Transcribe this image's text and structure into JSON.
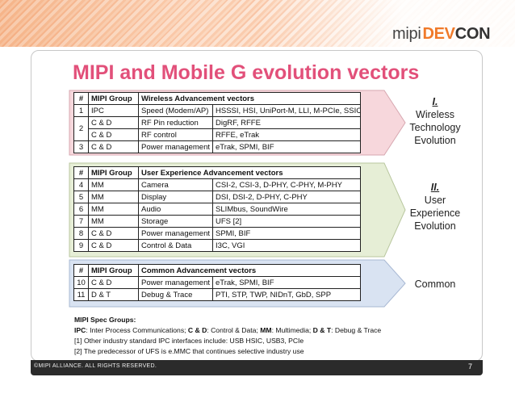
{
  "header": {
    "logo": {
      "part1": "mipi",
      "part2": "DEV",
      "part3": "CON"
    },
    "banner_color": "#f6a26b"
  },
  "title": "MIPI and Mobile G evolution vectors",
  "title_color": "#e2507a",
  "tables": {
    "wireless": {
      "headers": [
        "#",
        "MIPI Group",
        "Wireless Advancement vectors",
        ""
      ],
      "rows": [
        [
          "1",
          "IPC",
          "Speed (Modem/AP)",
          "HSSSI, HSI, UniPort-M, LLI, M-PCIe, SSIC [1]"
        ],
        [
          "2",
          "C & D",
          "RF Pin reduction",
          "DigRF, RFFE"
        ],
        [
          "",
          "C & D",
          "RF control",
          "RFFE, eTrak"
        ],
        [
          "3",
          "C & D",
          "Power management",
          "eTrak, SPMI, BIF"
        ]
      ],
      "arrow_color": "#f7d7dc"
    },
    "ux": {
      "headers": [
        "#",
        "MIPI Group",
        "User Experience Advancement vectors",
        ""
      ],
      "rows": [
        [
          "4",
          "MM",
          "Camera",
          "CSI-2, CSI-3, D-PHY, C-PHY, M-PHY"
        ],
        [
          "5",
          "MM",
          "Display",
          "DSI, DSI-2, D-PHY, C-PHY"
        ],
        [
          "6",
          "MM",
          "Audio",
          "SLIMbus, SoundWire"
        ],
        [
          "7",
          "MM",
          "Storage",
          "UFS [2]"
        ],
        [
          "8",
          "C & D",
          "Power management",
          "SPMI, BIF"
        ],
        [
          "9",
          "C & D",
          "Control & Data",
          "I3C, VGI"
        ]
      ],
      "arrow_color": "#e6eed6"
    },
    "common": {
      "headers": [
        "#",
        "MIPI Group",
        "Common Advancement vectors",
        ""
      ],
      "rows": [
        [
          "10",
          "C & D",
          "Power management",
          "eTrak, SPMI, BIF"
        ],
        [
          "11",
          "D & T",
          "Debug & Trace",
          "PTI, STP, TWP, NIDnT, GbD, SPP"
        ]
      ],
      "arrow_color": "#d9e3f2"
    }
  },
  "side_labels": {
    "wireless": {
      "roman": "I.",
      "lines": [
        "Wireless",
        "Technology",
        "Evolution"
      ]
    },
    "ux": {
      "roman": "II.",
      "lines": [
        "User",
        "Experience",
        "Evolution"
      ]
    },
    "common": {
      "lines": [
        "Common"
      ]
    }
  },
  "notes": {
    "heading": "MIPI Spec Groups:",
    "groups": [
      {
        "abbr": "IPC",
        "text": ": Inter Process Communications; "
      },
      {
        "abbr": "C & D",
        "text": ": Control & Data; "
      },
      {
        "abbr": "MM",
        "text": ": Multimedia; "
      },
      {
        "abbr": "D & T",
        "text": ": Debug & Trace"
      }
    ],
    "footnote1": "[1] Other industry standard IPC interfaces include: USB HSIC, USB3, PCIe",
    "footnote2": "[2] The predecessor of UFS is e.MMC that continues selective industry use"
  },
  "footer": {
    "copyright": "©MIPI ALLIANCE. ALL RIGHTS RESERVED.",
    "page": "7"
  }
}
